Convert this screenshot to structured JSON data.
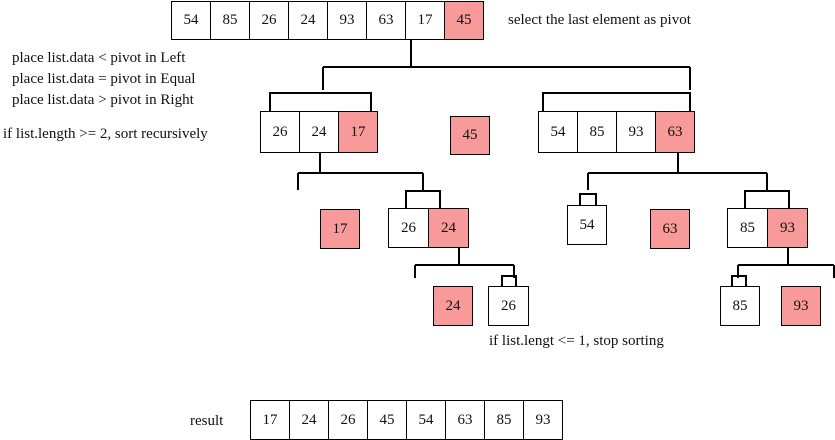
{
  "notes": {
    "pivot_rule": "select the last element as pivot",
    "left_rule": "place list.data < pivot in Left",
    "equal_rule": "place list.data = pivot in Equal",
    "right_rule": "place list.data > pivot in Right",
    "recursive_rule": "if list.length >= 2, sort recursively",
    "stop_rule": "if list.lengt <= 1, stop sorting",
    "result_label": "result"
  },
  "colors": {
    "pivot": "#f89a9a",
    "normal": "#ffffff",
    "line": "#000000"
  },
  "lists": {
    "root": [
      {
        "v": "54"
      },
      {
        "v": "85"
      },
      {
        "v": "26"
      },
      {
        "v": "24"
      },
      {
        "v": "93"
      },
      {
        "v": "63"
      },
      {
        "v": "17"
      },
      {
        "v": "45",
        "pivot": true
      }
    ],
    "level1_left": [
      {
        "v": "26"
      },
      {
        "v": "24"
      },
      {
        "v": "17",
        "pivot": true
      }
    ],
    "level1_equal": [
      {
        "v": "45",
        "pivot": true
      }
    ],
    "level1_right": [
      {
        "v": "54"
      },
      {
        "v": "85"
      },
      {
        "v": "93"
      },
      {
        "v": "63",
        "pivot": true
      }
    ],
    "level2_left_equal": [
      {
        "v": "17",
        "pivot": true
      }
    ],
    "level2_left_right": [
      {
        "v": "26"
      },
      {
        "v": "24",
        "pivot": true
      }
    ],
    "level2_right_left": [
      {
        "v": "54"
      }
    ],
    "level2_right_equal": [
      {
        "v": "63",
        "pivot": true
      }
    ],
    "level2_right_right": [
      {
        "v": "85"
      },
      {
        "v": "93",
        "pivot": true
      }
    ],
    "level3_left_equal": [
      {
        "v": "24",
        "pivot": true
      }
    ],
    "level3_left_right": [
      {
        "v": "26"
      }
    ],
    "level3_right_left": [
      {
        "v": "85"
      }
    ],
    "level3_right_equal": [
      {
        "v": "93",
        "pivot": true
      }
    ],
    "result": [
      {
        "v": "17"
      },
      {
        "v": "24"
      },
      {
        "v": "26"
      },
      {
        "v": "45"
      },
      {
        "v": "54"
      },
      {
        "v": "63"
      },
      {
        "v": "85"
      },
      {
        "v": "93"
      }
    ]
  }
}
